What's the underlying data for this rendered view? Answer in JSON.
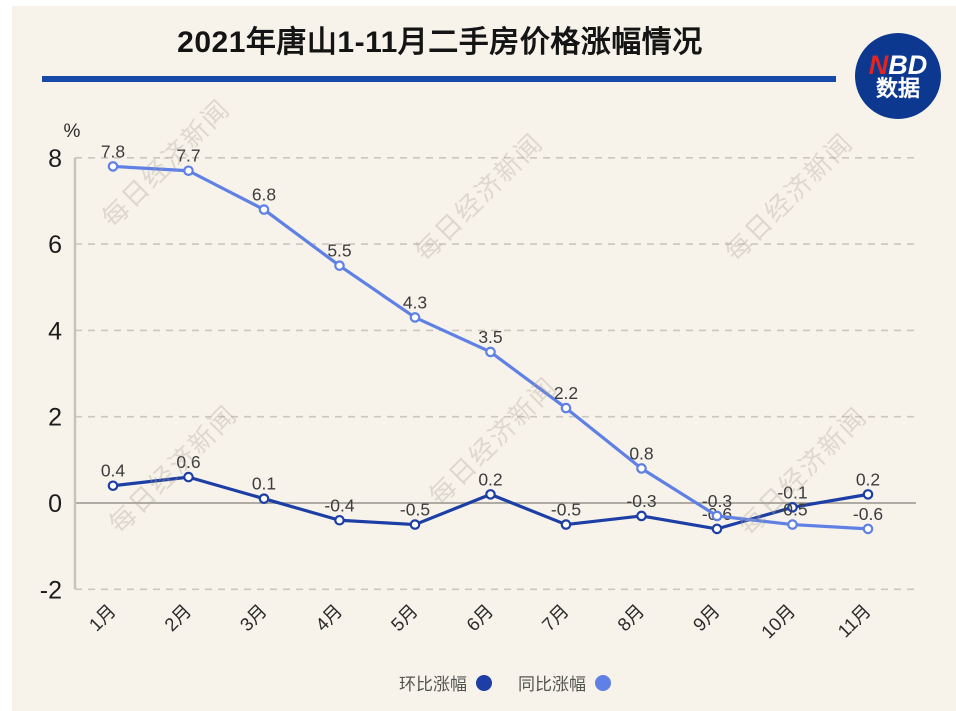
{
  "page": {
    "background": "#f7f3eb",
    "edge_color": "#ffffff"
  },
  "header": {
    "title": "2021年唐山1-11月二手房价格涨幅情况",
    "underline_color": "#1649a8",
    "logo": {
      "n": "N",
      "bd": "BD",
      "line2": "数据",
      "bg_color": "#0c3890",
      "n_color": "#e2251f",
      "text_color": "#ffffff"
    }
  },
  "watermark": {
    "text": "每日经济新闻"
  },
  "chart_data": {
    "type": "line",
    "title": "2021年唐山1-11月二手房价格涨幅情况",
    "ylabel": "%",
    "categories": [
      "1月",
      "2月",
      "3月",
      "4月",
      "5月",
      "6月",
      "7月",
      "8月",
      "9月",
      "10月",
      "11月"
    ],
    "series": [
      {
        "name": "环比涨幅",
        "color": "#1d3fa5",
        "values": [
          0.4,
          0.6,
          0.1,
          -0.4,
          -0.5,
          0.2,
          -0.5,
          -0.3,
          -0.6,
          -0.1,
          0.2
        ]
      },
      {
        "name": "同比涨幅",
        "color": "#5f80e4",
        "values": [
          7.8,
          7.7,
          6.8,
          5.5,
          4.3,
          3.5,
          2.2,
          0.8,
          -0.3,
          -0.5,
          -0.6
        ]
      }
    ],
    "y_ticks": [
      8,
      6,
      4,
      2,
      0,
      -2
    ],
    "ylim": [
      -2,
      8
    ],
    "grid": "horizontal-dashed",
    "marker": "open-circle",
    "data_labels": "shown",
    "legend_position": "bottom"
  }
}
